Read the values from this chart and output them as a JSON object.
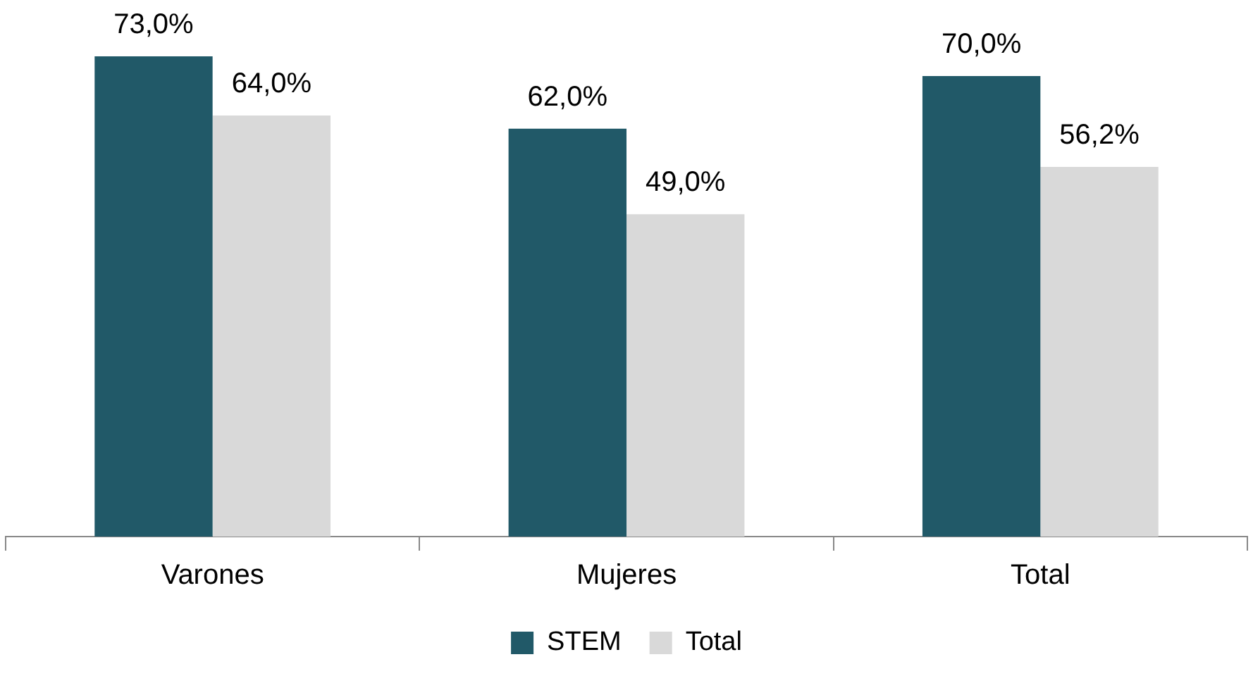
{
  "chart_data": {
    "type": "bar",
    "categories": [
      "Varones",
      "Mujeres",
      "Total"
    ],
    "series": [
      {
        "name": "STEM",
        "color": "#215968",
        "values": [
          73,
          62,
          70
        ],
        "value_labels": [
          "73,0%",
          "62,0%",
          "70,0%"
        ]
      },
      {
        "name": "Total",
        "color": "#d9d9d9",
        "values": [
          64,
          49,
          56.2
        ],
        "value_labels": [
          "64,0%",
          "49,0%",
          "56,2%"
        ]
      }
    ],
    "tick_labels": "x",
    "legend": "bottom",
    "grid": false
  }
}
